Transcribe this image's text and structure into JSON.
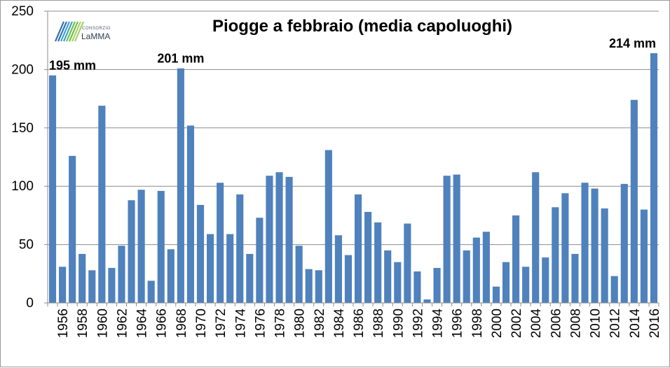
{
  "chart_data": {
    "type": "bar",
    "title": "Piogge a febbraio (media capoluoghi)",
    "xlabel": "",
    "ylabel": "",
    "ylim": [
      0,
      250
    ],
    "yticks": [
      0,
      50,
      100,
      150,
      200,
      250
    ],
    "grid": true,
    "bar_color": "#4f81bd",
    "categories": [
      1955,
      1956,
      1957,
      1958,
      1959,
      1960,
      1961,
      1962,
      1963,
      1964,
      1965,
      1966,
      1967,
      1968,
      1969,
      1970,
      1971,
      1972,
      1973,
      1974,
      1975,
      1976,
      1977,
      1978,
      1979,
      1980,
      1981,
      1982,
      1983,
      1984,
      1985,
      1986,
      1987,
      1988,
      1989,
      1990,
      1991,
      1992,
      1993,
      1994,
      1995,
      1996,
      1997,
      1998,
      1999,
      2000,
      2001,
      2002,
      2003,
      2004,
      2005,
      2006,
      2007,
      2008,
      2009,
      2010,
      2011,
      2012,
      2013,
      2014,
      2015,
      2016
    ],
    "tick_labels": [
      "1956",
      "1958",
      "1960",
      "1962",
      "1964",
      "1966",
      "1968",
      "1970",
      "1972",
      "1974",
      "1976",
      "1978",
      "1980",
      "1982",
      "1984",
      "1986",
      "1988",
      "1990",
      "1992",
      "1994",
      "1996",
      "1998",
      "2000",
      "2002",
      "2004",
      "2006",
      "2008",
      "2010",
      "2012",
      "2014",
      "2016"
    ],
    "values": [
      195,
      31,
      126,
      42,
      28,
      169,
      30,
      49,
      88,
      97,
      19,
      96,
      46,
      201,
      152,
      84,
      59,
      103,
      59,
      93,
      42,
      73,
      109,
      112,
      108,
      49,
      29,
      28,
      131,
      58,
      41,
      93,
      78,
      69,
      45,
      35,
      68,
      27,
      3,
      30,
      109,
      110,
      45,
      56,
      61,
      14,
      35,
      75,
      31,
      112,
      39,
      82,
      94,
      42,
      103,
      98,
      81,
      23,
      102,
      174,
      80,
      214
    ],
    "annotations": [
      {
        "text": "195 mm",
        "year": 1955
      },
      {
        "text": "201 mm",
        "year": 1968
      },
      {
        "text": "214 mm",
        "year": 2016
      }
    ]
  },
  "logo": {
    "line1": "CONSORZIO",
    "line2": "LaMMA",
    "colors": [
      "#2f6fb0",
      "#3f9fd4",
      "#6fbf3f",
      "#a6d36a"
    ]
  }
}
